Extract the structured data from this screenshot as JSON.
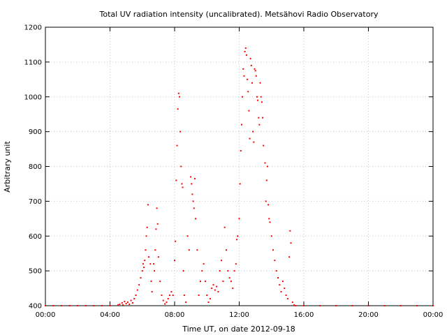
{
  "chart_data": {
    "type": "scatter",
    "title": "Total UV radiation intensity (uncalibrated). Metsähovi Radio Observatory",
    "xlabel": "Time UT, on date 2012-09-18",
    "ylabel": "Arbitrary unit",
    "x_ticks": [
      "00:00",
      "04:00",
      "08:00",
      "12:00",
      "16:00",
      "20:00",
      "00:00"
    ],
    "y_ticks": [
      "400",
      "500",
      "600",
      "700",
      "800",
      "900",
      "1000",
      "1100",
      "1200"
    ],
    "xlim_hours": [
      0,
      24
    ],
    "ylim": [
      400,
      1200
    ],
    "grid": true,
    "marker_color": "#ff0000",
    "series": [
      {
        "points": [
          [
            0.0,
            400
          ],
          [
            0.5,
            400
          ],
          [
            1.0,
            400
          ],
          [
            1.5,
            400
          ],
          [
            2.0,
            400
          ],
          [
            2.5,
            400
          ],
          [
            3.0,
            400
          ],
          [
            3.5,
            400
          ],
          [
            4.0,
            400
          ],
          [
            4.5,
            402
          ],
          [
            4.6,
            404
          ],
          [
            4.75,
            408
          ],
          [
            4.8,
            402
          ],
          [
            4.9,
            412
          ],
          [
            5.0,
            406
          ],
          [
            5.1,
            410
          ],
          [
            5.2,
            404
          ],
          [
            5.3,
            415
          ],
          [
            5.4,
            408
          ],
          [
            5.5,
            420
          ],
          [
            5.6,
            430
          ],
          [
            5.7,
            445
          ],
          [
            5.8,
            460
          ],
          [
            5.9,
            480
          ],
          [
            6.0,
            500
          ],
          [
            6.05,
            520
          ],
          [
            6.1,
            510
          ],
          [
            6.15,
            530
          ],
          [
            6.2,
            560
          ],
          [
            6.25,
            600
          ],
          [
            6.3,
            625
          ],
          [
            6.35,
            690
          ],
          [
            6.4,
            540
          ],
          [
            6.5,
            520
          ],
          [
            6.55,
            470
          ],
          [
            6.6,
            440
          ],
          [
            6.7,
            520
          ],
          [
            6.75,
            500
          ],
          [
            6.8,
            560
          ],
          [
            6.85,
            620
          ],
          [
            6.9,
            680
          ],
          [
            6.95,
            635
          ],
          [
            7.0,
            540
          ],
          [
            7.1,
            470
          ],
          [
            7.2,
            430
          ],
          [
            7.3,
            415
          ],
          [
            7.4,
            405
          ],
          [
            7.5,
            410
          ],
          [
            7.6,
            420
          ],
          [
            7.7,
            430
          ],
          [
            7.8,
            440
          ],
          [
            7.9,
            430
          ],
          [
            8.0,
            530
          ],
          [
            8.05,
            585
          ],
          [
            8.1,
            760
          ],
          [
            8.15,
            860
          ],
          [
            8.2,
            965
          ],
          [
            8.25,
            1010
          ],
          [
            8.3,
            1000
          ],
          [
            8.35,
            900
          ],
          [
            8.4,
            800
          ],
          [
            8.45,
            750
          ],
          [
            8.5,
            740
          ],
          [
            8.55,
            500
          ],
          [
            8.6,
            430
          ],
          [
            8.7,
            410
          ],
          [
            8.8,
            600
          ],
          [
            8.9,
            560
          ],
          [
            9.0,
            770
          ],
          [
            9.05,
            750
          ],
          [
            9.1,
            720
          ],
          [
            9.15,
            700
          ],
          [
            9.2,
            680
          ],
          [
            9.25,
            765
          ],
          [
            9.3,
            650
          ],
          [
            9.4,
            560
          ],
          [
            9.5,
            430
          ],
          [
            9.6,
            470
          ],
          [
            9.7,
            500
          ],
          [
            9.8,
            520
          ],
          [
            9.9,
            470
          ],
          [
            10.0,
            430
          ],
          [
            10.1,
            410
          ],
          [
            10.2,
            420
          ],
          [
            10.3,
            450
          ],
          [
            10.4,
            460
          ],
          [
            10.5,
            445
          ],
          [
            10.6,
            455
          ],
          [
            10.7,
            440
          ],
          [
            10.8,
            500
          ],
          [
            10.9,
            530
          ],
          [
            11.0,
            470
          ],
          [
            11.1,
            625
          ],
          [
            11.2,
            560
          ],
          [
            11.3,
            500
          ],
          [
            11.4,
            480
          ],
          [
            11.5,
            470
          ],
          [
            11.6,
            450
          ],
          [
            11.7,
            500
          ],
          [
            11.8,
            520
          ],
          [
            11.85,
            590
          ],
          [
            11.9,
            600
          ],
          [
            12.0,
            650
          ],
          [
            12.05,
            750
          ],
          [
            12.1,
            845
          ],
          [
            12.15,
            920
          ],
          [
            12.2,
            1000
          ],
          [
            12.25,
            1080
          ],
          [
            12.3,
            1060
          ],
          [
            12.35,
            1130
          ],
          [
            12.4,
            1140
          ],
          [
            12.45,
            1120
          ],
          [
            12.5,
            1050
          ],
          [
            12.55,
            1015
          ],
          [
            12.6,
            960
          ],
          [
            12.65,
            880
          ],
          [
            12.7,
            1110
          ],
          [
            12.75,
            1090
          ],
          [
            12.8,
            1040
          ],
          [
            12.85,
            900
          ],
          [
            12.9,
            870
          ],
          [
            12.95,
            1080
          ],
          [
            13.0,
            1075
          ],
          [
            13.05,
            1060
          ],
          [
            13.1,
            1000
          ],
          [
            13.15,
            990
          ],
          [
            13.2,
            940
          ],
          [
            13.25,
            920
          ],
          [
            13.3,
            1040
          ],
          [
            13.35,
            1000
          ],
          [
            13.4,
            985
          ],
          [
            13.45,
            940
          ],
          [
            13.5,
            860
          ],
          [
            13.6,
            810
          ],
          [
            13.65,
            700
          ],
          [
            13.7,
            760
          ],
          [
            13.75,
            800
          ],
          [
            13.8,
            690
          ],
          [
            13.85,
            650
          ],
          [
            13.9,
            640
          ],
          [
            14.0,
            600
          ],
          [
            14.1,
            560
          ],
          [
            14.2,
            530
          ],
          [
            14.3,
            500
          ],
          [
            14.4,
            480
          ],
          [
            14.5,
            460
          ],
          [
            14.6,
            440
          ],
          [
            14.7,
            470
          ],
          [
            14.8,
            450
          ],
          [
            14.9,
            430
          ],
          [
            15.0,
            420
          ],
          [
            15.1,
            540
          ],
          [
            15.15,
            615
          ],
          [
            15.2,
            580
          ],
          [
            15.3,
            410
          ],
          [
            15.4,
            402
          ],
          [
            15.5,
            400
          ],
          [
            16.0,
            400
          ],
          [
            17.0,
            400
          ],
          [
            18.0,
            400
          ],
          [
            19.0,
            400
          ],
          [
            20.0,
            400
          ],
          [
            21.0,
            400
          ],
          [
            22.0,
            400
          ],
          [
            23.0,
            400
          ],
          [
            24.0,
            400
          ]
        ]
      }
    ]
  }
}
